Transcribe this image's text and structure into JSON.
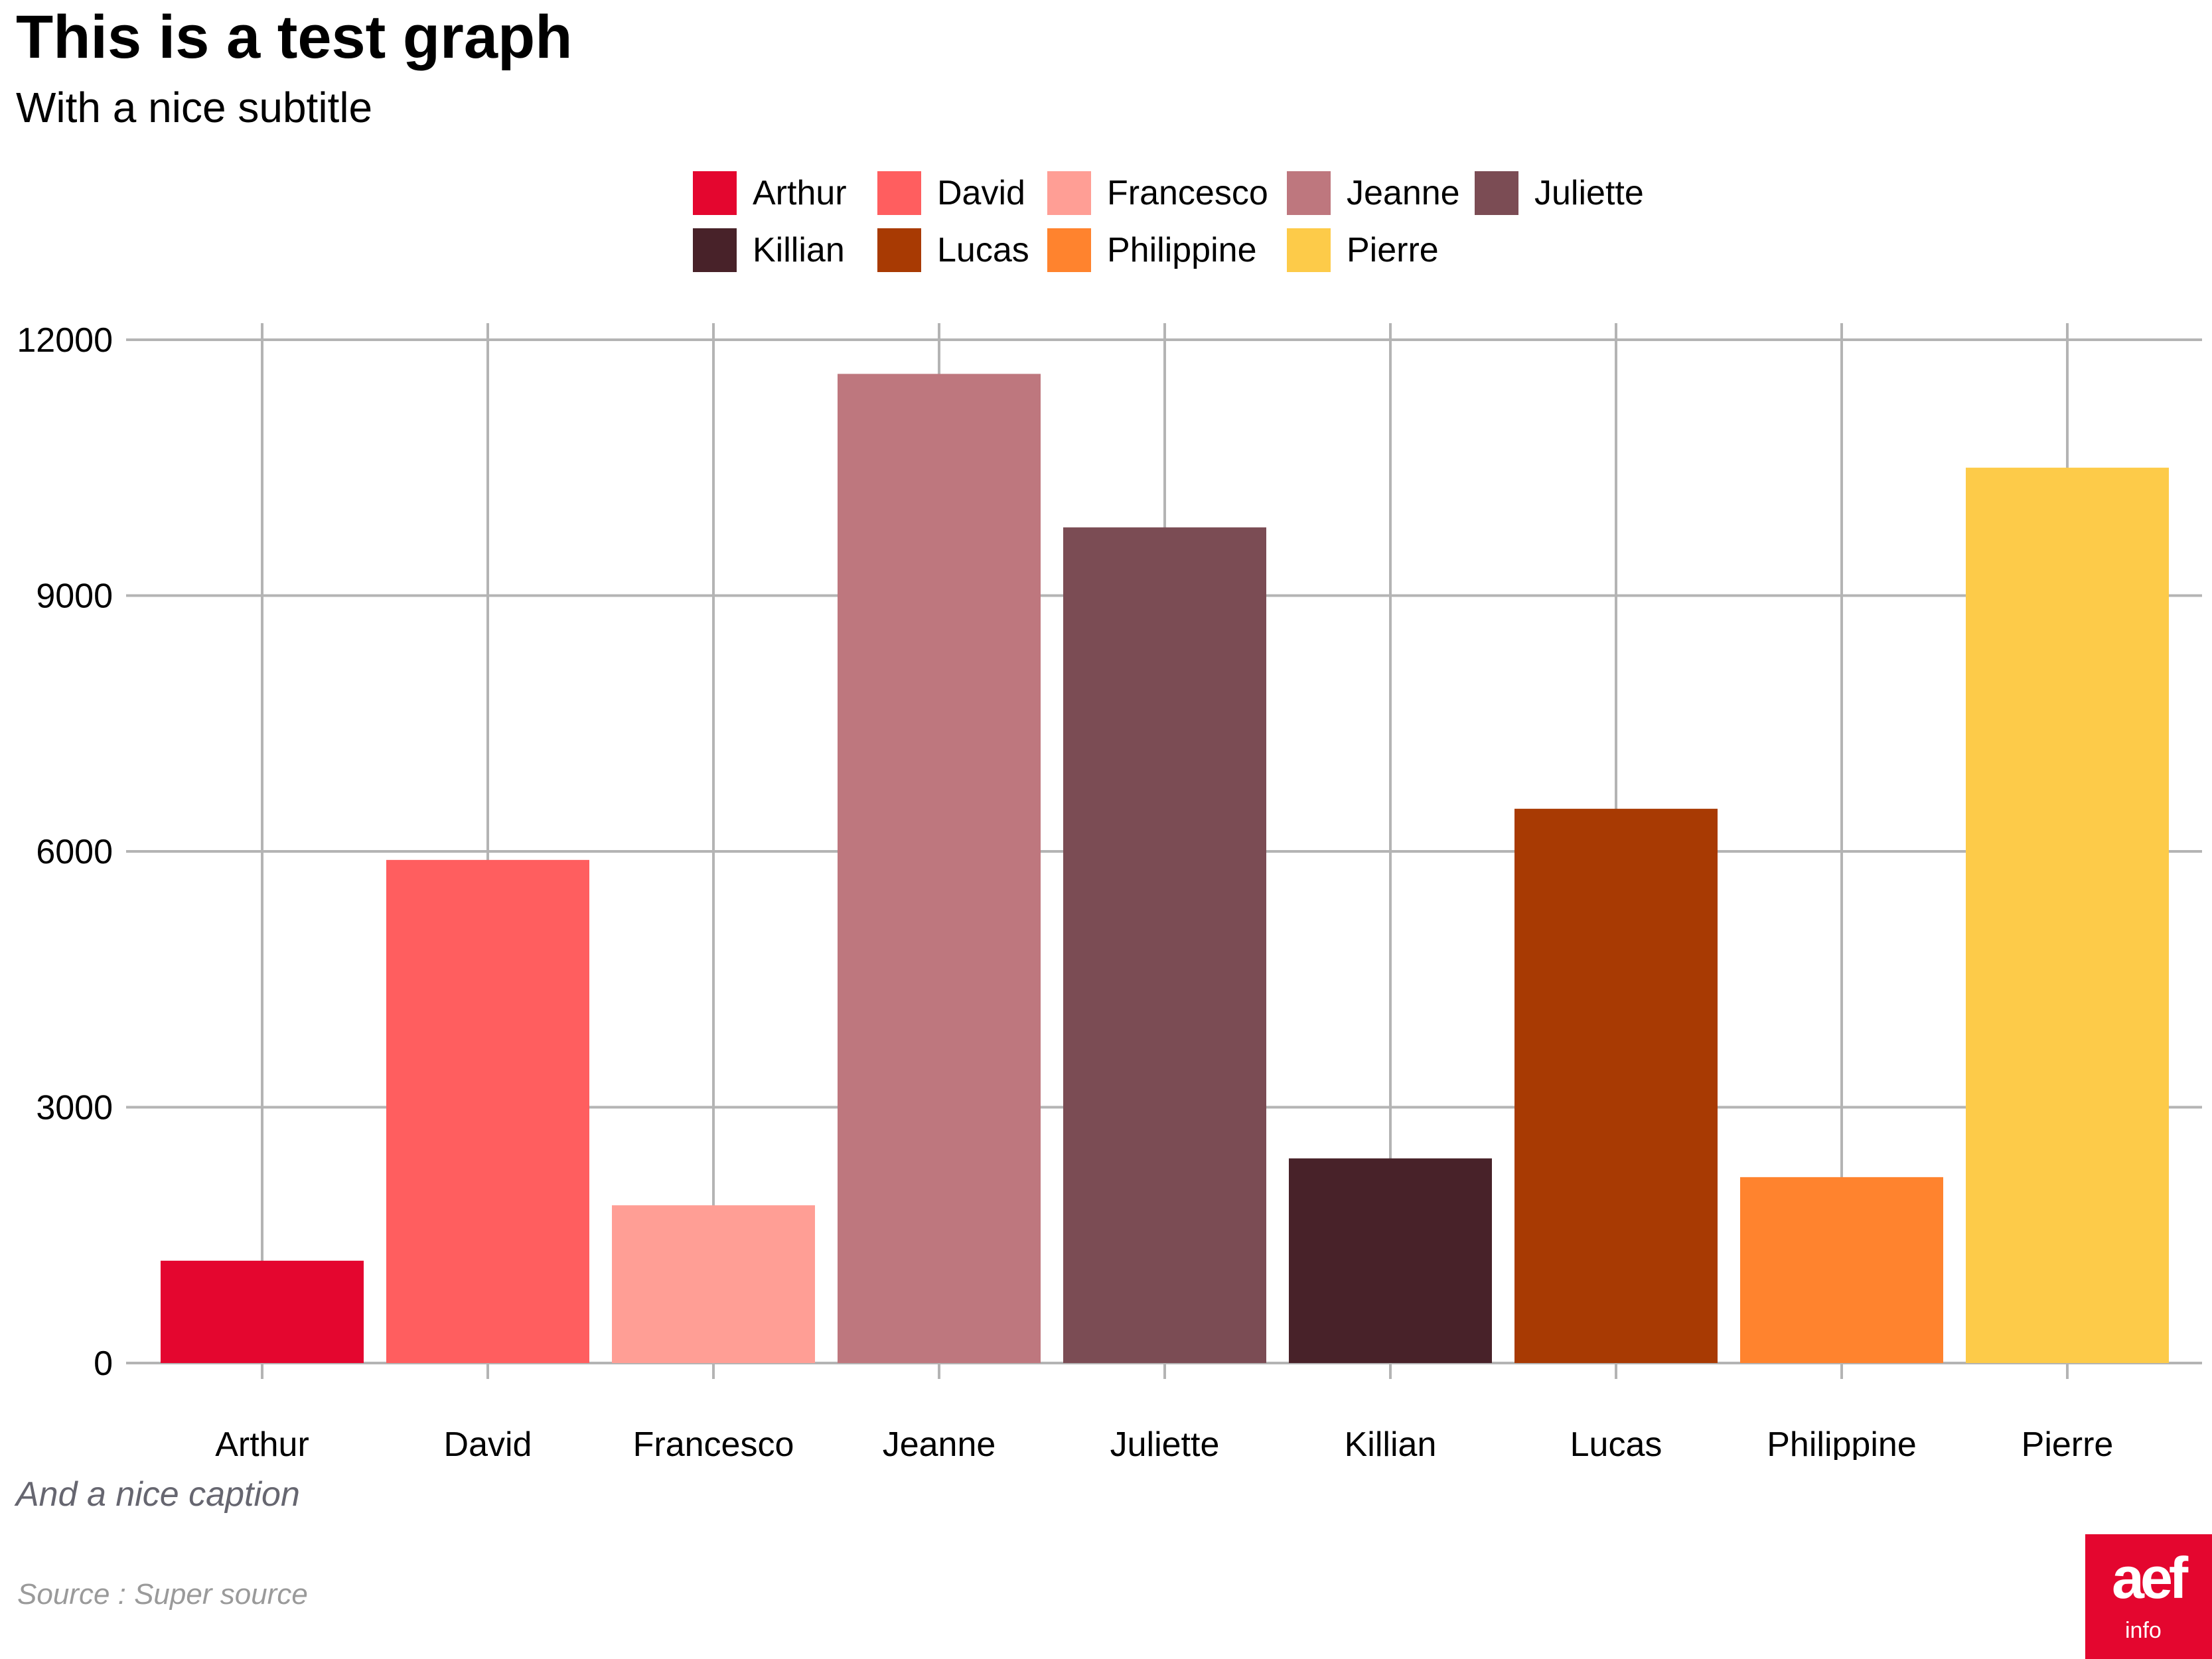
{
  "chart_data": {
    "type": "bar",
    "title": "This is a test graph",
    "subtitle": "With a nice subtitle",
    "caption": "And a nice caption",
    "source": "Source : Super source",
    "xlabel": "",
    "ylabel": "",
    "categories": [
      "Arthur",
      "David",
      "Francesco",
      "Jeanne",
      "Juliette",
      "Killian",
      "Lucas",
      "Philippine",
      "Pierre"
    ],
    "values": [
      1200,
      5900,
      1850,
      11600,
      9800,
      2400,
      6500,
      2180,
      10500
    ],
    "colors": [
      "#E4062F",
      "#FF5E5F",
      "#FF9E95",
      "#BE777E",
      "#7B4C54",
      "#482229",
      "#A83A03",
      "#FF832E",
      "#FDCB49"
    ],
    "ylim": [
      0,
      12000
    ],
    "yticks": [
      0,
      3000,
      6000,
      9000,
      12000
    ],
    "grid": true,
    "legend_position": "top"
  },
  "logo": {
    "main": "aef",
    "sub": "info"
  }
}
